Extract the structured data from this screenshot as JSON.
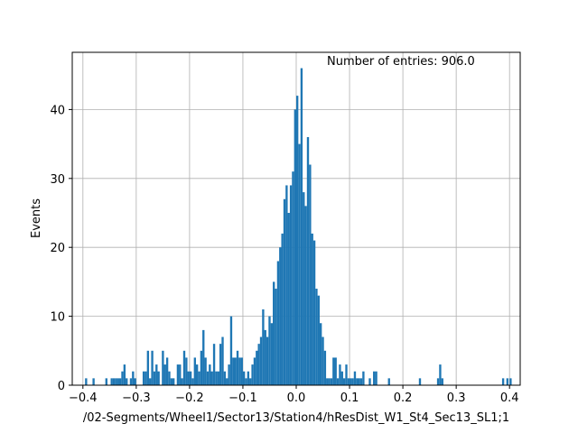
{
  "chart_data": {
    "type": "bar",
    "xlabel": "/02-Segments/Wheel1/Sector13/Station4/hResDist_W1_St4_Sec13_SL1;1",
    "ylabel": "Events",
    "annotation": "Number of entries: 906.0",
    "xlim": [
      -0.42,
      0.42
    ],
    "ylim": [
      0,
      48.3
    ],
    "xticks": [
      -0.4,
      -0.3,
      -0.2,
      -0.1,
      0.0,
      0.1,
      0.2,
      0.3,
      0.4
    ],
    "xtick_labels": [
      "−0.4",
      "−0.3",
      "−0.2",
      "−0.1",
      "0.0",
      "0.1",
      "0.2",
      "0.3",
      "0.4"
    ],
    "yticks": [
      0,
      10,
      20,
      30,
      40
    ],
    "ytick_labels": [
      "0",
      "10",
      "20",
      "30",
      "40"
    ],
    "grid": true,
    "bar_color": "#1f77b4",
    "bin_width": 0.004,
    "bins": [
      [
        -0.396,
        1
      ],
      [
        -0.382,
        1
      ],
      [
        -0.358,
        1
      ],
      [
        -0.348,
        1
      ],
      [
        -0.344,
        1
      ],
      [
        -0.34,
        1
      ],
      [
        -0.336,
        1
      ],
      [
        -0.332,
        1
      ],
      [
        -0.328,
        2
      ],
      [
        -0.324,
        3
      ],
      [
        -0.32,
        1
      ],
      [
        -0.312,
        1
      ],
      [
        -0.308,
        2
      ],
      [
        -0.304,
        1
      ],
      [
        -0.288,
        2
      ],
      [
        -0.284,
        2
      ],
      [
        -0.28,
        5
      ],
      [
        -0.276,
        1
      ],
      [
        -0.272,
        5
      ],
      [
        -0.268,
        2
      ],
      [
        -0.264,
        3
      ],
      [
        -0.26,
        2
      ],
      [
        -0.252,
        5
      ],
      [
        -0.248,
        3
      ],
      [
        -0.244,
        4
      ],
      [
        -0.24,
        2
      ],
      [
        -0.236,
        1
      ],
      [
        -0.232,
        1
      ],
      [
        -0.224,
        3
      ],
      [
        -0.22,
        3
      ],
      [
        -0.216,
        1
      ],
      [
        -0.212,
        5
      ],
      [
        -0.208,
        4
      ],
      [
        -0.204,
        2
      ],
      [
        -0.2,
        2
      ],
      [
        -0.196,
        1
      ],
      [
        -0.192,
        4
      ],
      [
        -0.188,
        3
      ],
      [
        -0.184,
        2
      ],
      [
        -0.18,
        5
      ],
      [
        -0.176,
        8
      ],
      [
        -0.172,
        4
      ],
      [
        -0.168,
        2
      ],
      [
        -0.164,
        3
      ],
      [
        -0.16,
        2
      ],
      [
        -0.156,
        6
      ],
      [
        -0.152,
        2
      ],
      [
        -0.148,
        2
      ],
      [
        -0.144,
        6
      ],
      [
        -0.14,
        7
      ],
      [
        -0.136,
        2
      ],
      [
        -0.132,
        1
      ],
      [
        -0.128,
        3
      ],
      [
        -0.124,
        10
      ],
      [
        -0.12,
        4
      ],
      [
        -0.116,
        4
      ],
      [
        -0.112,
        5
      ],
      [
        -0.108,
        4
      ],
      [
        -0.104,
        4
      ],
      [
        -0.1,
        2
      ],
      [
        -0.096,
        1
      ],
      [
        -0.092,
        2
      ],
      [
        -0.088,
        1
      ],
      [
        -0.084,
        3
      ],
      [
        -0.08,
        4
      ],
      [
        -0.076,
        5
      ],
      [
        -0.072,
        6
      ],
      [
        -0.068,
        7
      ],
      [
        -0.064,
        11
      ],
      [
        -0.06,
        8
      ],
      [
        -0.056,
        7
      ],
      [
        -0.052,
        10
      ],
      [
        -0.048,
        9
      ],
      [
        -0.044,
        15
      ],
      [
        -0.04,
        14
      ],
      [
        -0.036,
        18
      ],
      [
        -0.032,
        20
      ],
      [
        -0.028,
        22
      ],
      [
        -0.024,
        27
      ],
      [
        -0.02,
        29
      ],
      [
        -0.016,
        25
      ],
      [
        -0.012,
        29
      ],
      [
        -0.008,
        31
      ],
      [
        -0.004,
        40
      ],
      [
        0.0,
        42
      ],
      [
        0.004,
        35
      ],
      [
        0.008,
        46
      ],
      [
        0.012,
        28
      ],
      [
        0.016,
        26
      ],
      [
        0.02,
        36
      ],
      [
        0.024,
        32
      ],
      [
        0.028,
        22
      ],
      [
        0.032,
        21
      ],
      [
        0.036,
        14
      ],
      [
        0.04,
        13
      ],
      [
        0.044,
        9
      ],
      [
        0.048,
        7
      ],
      [
        0.052,
        5
      ],
      [
        0.056,
        1
      ],
      [
        0.06,
        1
      ],
      [
        0.064,
        1
      ],
      [
        0.068,
        4
      ],
      [
        0.072,
        4
      ],
      [
        0.076,
        1
      ],
      [
        0.08,
        3
      ],
      [
        0.084,
        2
      ],
      [
        0.088,
        1
      ],
      [
        0.092,
        3
      ],
      [
        0.096,
        1
      ],
      [
        0.1,
        1
      ],
      [
        0.104,
        1
      ],
      [
        0.108,
        2
      ],
      [
        0.112,
        1
      ],
      [
        0.116,
        1
      ],
      [
        0.12,
        1
      ],
      [
        0.124,
        2
      ],
      [
        0.136,
        1
      ],
      [
        0.144,
        2
      ],
      [
        0.148,
        2
      ],
      [
        0.172,
        1
      ],
      [
        0.23,
        1
      ],
      [
        0.264,
        1
      ],
      [
        0.268,
        3
      ],
      [
        0.272,
        1
      ],
      [
        0.386,
        1
      ],
      [
        0.394,
        1
      ],
      [
        0.4,
        1
      ]
    ]
  }
}
